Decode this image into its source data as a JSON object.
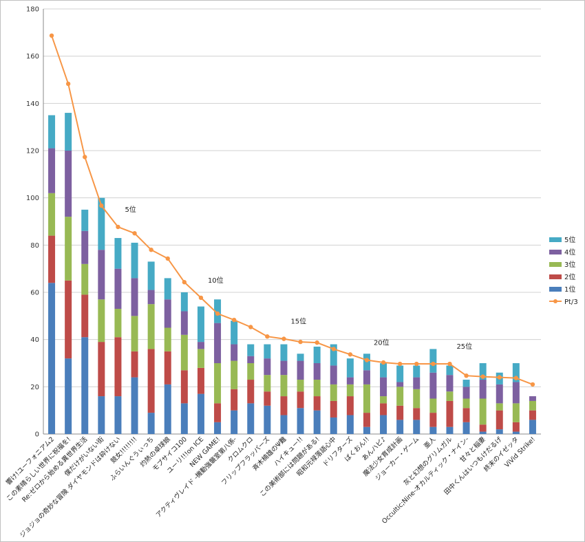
{
  "chart_data": {
    "type": "bar",
    "stacked": true,
    "grid": true,
    "legend_position": "right",
    "ylim": [
      0,
      180
    ],
    "yticks": [
      0,
      20,
      40,
      60,
      80,
      100,
      120,
      140,
      160,
      180
    ],
    "categories": [
      "響け!ユーフォニアム2",
      "この素晴らしい世界に祝福を!",
      "Re:ゼロから始める異世界生活",
      "僕だけがいない街",
      "ジョジョの奇妙な冒険 ダイヤモンドは砕けない",
      "競女!!!!!!!!",
      "ふらいんぐうぃっち",
      "灼熱の卓球娘",
      "モブサイコ100",
      "ユーリ!!!on ICE",
      "NEW GAME!",
      "アクティヴレイド -機動強襲室第八係-",
      "クロムクロ",
      "フリップフラッパーズ",
      "斉木楠雄のΨ難",
      "ハイキュー!!",
      "この美術部には問題がある!",
      "昭和元禄落語心中",
      "ドリフターズ",
      "ばくおん!!",
      "あんハピ♪",
      "魔法少女育成計画",
      "ジョーカー・ゲーム",
      "亜人",
      "灰と幻想のグリムガル",
      "Occultic;Nine-オカルティック・ナイン-",
      "甘々と稲妻",
      "田中くんはいつもけだるげ",
      "終末のイゼッタ",
      "ViVid Strike!"
    ],
    "series": [
      {
        "name": "1位",
        "color": "#4a7ebb",
        "values": [
          64,
          32,
          41,
          16,
          16,
          24,
          9,
          21,
          13,
          17,
          5,
          10,
          13,
          12,
          8,
          11,
          10,
          7,
          8,
          3,
          8,
          6,
          6,
          3,
          3,
          5,
          1,
          2,
          1,
          6
        ]
      },
      {
        "name": "2位",
        "color": "#be4b48",
        "values": [
          20,
          33,
          18,
          23,
          25,
          11,
          27,
          14,
          14,
          11,
          8,
          9,
          10,
          6,
          8,
          7,
          6,
          7,
          8,
          6,
          5,
          6,
          5,
          6,
          11,
          6,
          3,
          8,
          4,
          4
        ]
      },
      {
        "name": "3位",
        "color": "#98b954",
        "values": [
          18,
          27,
          13,
          18,
          12,
          15,
          19,
          10,
          15,
          8,
          17,
          12,
          7,
          7,
          9,
          5,
          7,
          7,
          5,
          12,
          3,
          8,
          8,
          6,
          4,
          4,
          11,
          3,
          8,
          4
        ]
      },
      {
        "name": "4位",
        "color": "#7d60a0",
        "values": [
          19,
          28,
          14,
          21,
          17,
          16,
          6,
          12,
          10,
          3,
          17,
          7,
          3,
          7,
          6,
          8,
          7,
          8,
          3,
          6,
          8,
          2,
          5,
          11,
          7,
          5,
          8,
          8,
          9,
          2
        ]
      },
      {
        "name": "5位",
        "color": "#46aac5",
        "values": [
          14,
          16,
          9,
          22,
          13,
          15,
          12,
          9,
          8,
          15,
          10,
          10,
          5,
          6,
          7,
          3,
          7,
          9,
          8,
          7,
          6,
          7,
          5,
          10,
          4,
          3,
          7,
          5,
          8,
          0
        ]
      }
    ],
    "line_series": {
      "name": "Pt/3",
      "color": "#f79646",
      "values": [
        168.7,
        148.3,
        117.3,
        96.7,
        87.7,
        85.0,
        78.0,
        74.3,
        64.3,
        57.7,
        51.0,
        48.3,
        45.3,
        41.3,
        40.3,
        39.0,
        38.7,
        36.0,
        33.7,
        31.3,
        30.3,
        29.7,
        29.7,
        29.7,
        29.7,
        24.7,
        24.3,
        24.0,
        23.7,
        21.0
      ]
    },
    "annotations": [
      {
        "text": "5位",
        "category_index": 4
      },
      {
        "text": "10位",
        "category_index": 9
      },
      {
        "text": "15位",
        "category_index": 14
      },
      {
        "text": "20位",
        "category_index": 19
      },
      {
        "text": "25位",
        "category_index": 24
      }
    ]
  }
}
